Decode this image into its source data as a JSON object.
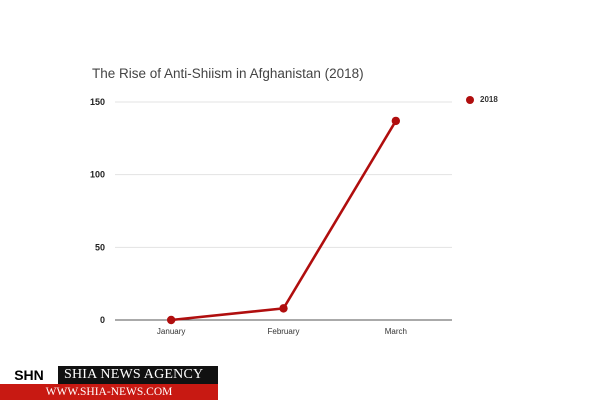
{
  "colors": {
    "series": "#b00e0e",
    "grid": "#e3e3e3",
    "watermark_url_bg": "#c81912",
    "watermark_dark_bg": "#111111"
  },
  "chart_data": {
    "type": "line",
    "title": "The Rise of Anti-Shiism in Afghanistan (2018)",
    "xlabel": "",
    "ylabel": "",
    "categories": [
      "January",
      "February",
      "March"
    ],
    "series": [
      {
        "name": "2018",
        "values": [
          0,
          8,
          137
        ]
      }
    ],
    "ylim": [
      0,
      150
    ],
    "yticks": [
      0,
      50,
      100,
      150
    ],
    "grid": true,
    "legend": "top-right"
  },
  "watermark": {
    "abbr": "SHN",
    "agency": "SHIA NEWS AGENCY",
    "url": "WWW.SHIA-NEWS.COM"
  }
}
